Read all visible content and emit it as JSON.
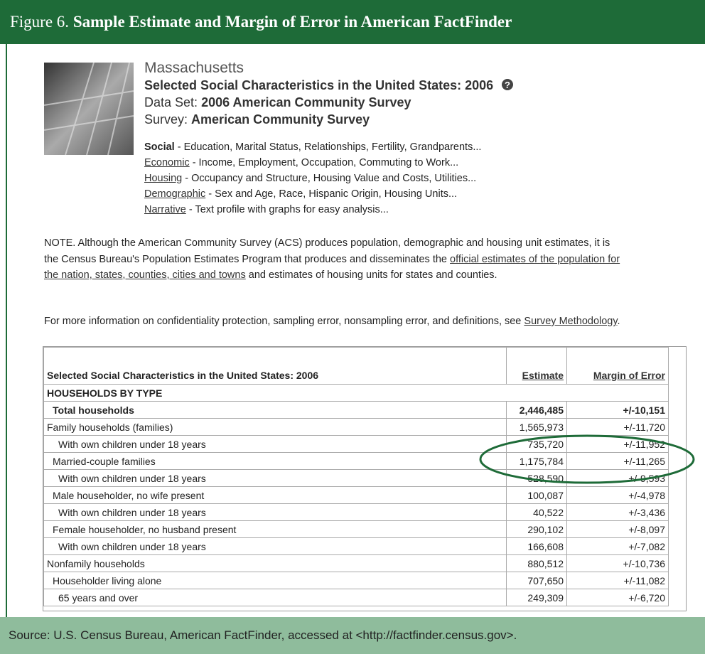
{
  "header": {
    "label": "Figure 6.",
    "title": "Sample Estimate and Margin of Error in American FactFinder"
  },
  "profile": {
    "place": "Massachusetts",
    "title": "Selected Social Characteristics in the United States: 2006",
    "dataset_label": "Data Set:",
    "dataset": "2006 American Community Survey",
    "survey_label": "Survey:",
    "survey": "American Community Survey"
  },
  "topics": [
    {
      "name": "Social",
      "description": "- Education, Marital Status, Relationships, Fertility, Grandparents..."
    },
    {
      "name": "Economic",
      "description": "- Income, Employment, Occupation, Commuting to Work..."
    },
    {
      "name": "Housing",
      "description": "- Occupancy and Structure, Housing Value and Costs, Utilities..."
    },
    {
      "name": "Demographic",
      "description": "- Sex and Age, Race, Hispanic Origin, Housing Units..."
    },
    {
      "name": "Narrative",
      "description": "- Text profile with graphs for easy analysis..."
    }
  ],
  "note": {
    "before": "NOTE. Although the American Community Survey (ACS) produces population, demographic and housing unit estimates, it is the Census Bureau's Population Estimates Program that produces and disseminates the",
    "link": "official estimates of the population for the nation, states, counties, cities and towns",
    "after": "and estimates of housing units for states and counties."
  },
  "more": {
    "text": "For more information on confidentiality protection, sampling error, nonsampling error, and definitions, see",
    "link": "Survey Methodology",
    "after": "."
  },
  "table": {
    "headers": [
      "Selected Social Characteristics in the United States: 2006",
      "Estimate",
      "Margin of Error"
    ],
    "section": "HOUSEHOLDS BY TYPE",
    "rows": [
      [
        "Total households",
        "2,446,485",
        "+/-10,151"
      ],
      [
        "Family households (families)",
        "1,565,973",
        "+/-11,720"
      ],
      [
        "With own children under 18 years",
        "735,720",
        "+/-11,952"
      ],
      [
        "Married-couple families",
        "1,175,784",
        "+/-11,265"
      ],
      [
        "With own children under 18 years",
        "528,590",
        "+/-9,593"
      ],
      [
        "Male householder, no wife present",
        "100,087",
        "+/-4,978"
      ],
      [
        "With own children under 18 years",
        "40,522",
        "+/-3,436"
      ],
      [
        "Female householder, no husband present",
        "290,102",
        "+/-8,097"
      ],
      [
        "With own children under 18 years",
        "166,608",
        "+/-7,082"
      ],
      [
        "Nonfamily households",
        "880,512",
        "+/-10,736"
      ],
      [
        "Householder living alone",
        "707,650",
        "+/-11,082"
      ],
      [
        "65 years and over",
        "249,309",
        "+/-6,720"
      ]
    ]
  },
  "footer": {
    "source": "Source: U.S. Census Bureau, American FactFinder, accessed at <http://factfinder.census.gov>."
  }
}
